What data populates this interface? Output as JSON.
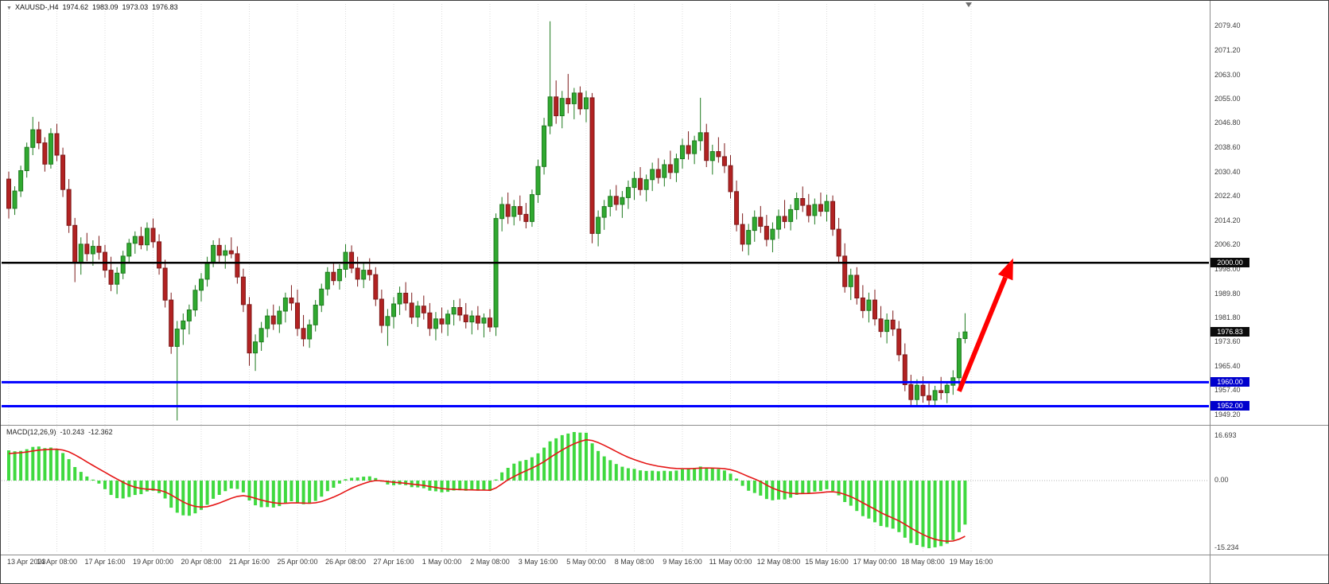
{
  "header": {
    "dropdown_icon": "▼",
    "title": "XAUUSD-,H4",
    "open": "1974.62",
    "high": "1983.09",
    "low": "1973.03",
    "close": "1976.83"
  },
  "indicator": {
    "label": "MACD(12,26,9)",
    "main_value": "-10.243",
    "signal_value": "-12.362",
    "axis_labels": [
      "16.693",
      "0.00",
      "-15.234"
    ]
  },
  "price_axis": {
    "labels": [
      "2079.40",
      "2071.20",
      "2063.00",
      "2055.00",
      "2046.80",
      "2038.60",
      "2030.40",
      "2022.40",
      "2014.20",
      "2006.20",
      "1998.00",
      "1989.80",
      "1981.80",
      "1973.60",
      "1965.40",
      "1957.40",
      "1949.20"
    ],
    "tags": [
      {
        "text": "2000.00",
        "price": 2000.0,
        "bg": "#0b0b0b",
        "name": "resistance-price-tag"
      },
      {
        "text": "1976.83",
        "price": 1976.83,
        "bg": "#0b0b0b",
        "name": "current-price-tag"
      },
      {
        "text": "1960.00",
        "price": 1960.0,
        "bg": "#0000cd",
        "name": "support-price-tag"
      },
      {
        "text": "1952.00",
        "price": 1952.0,
        "bg": "#0000cd",
        "name": "support-price-tag"
      }
    ]
  },
  "time_axis": {
    "labels": [
      "13 Apr 2023",
      "14 Apr 08:00",
      "17 Apr 16:00",
      "19 Apr 00:00",
      "20 Apr 08:00",
      "21 Apr 16:00",
      "25 Apr 00:00",
      "26 Apr 08:00",
      "27 Apr 16:00",
      "1 May 00:00",
      "2 May 08:00",
      "3 May 16:00",
      "5 May 00:00",
      "8 May 08:00",
      "9 May 16:00",
      "11 May 00:00",
      "12 May 08:00",
      "15 May 16:00",
      "17 May 00:00",
      "18 May 08:00",
      "19 May 16:00"
    ]
  },
  "objects": {
    "hlines": [
      {
        "price": 2000.0,
        "color": "#000000",
        "width": 2.5
      },
      {
        "price": 1960.0,
        "color": "#0000ff",
        "width": 3
      },
      {
        "price": 1952.0,
        "color": "#0000ff",
        "width": 3
      }
    ],
    "arrow": {
      "from_index": 158,
      "from_price": 1957.0,
      "to_index": 167,
      "to_price": 2001.5,
      "color": "#ff0000",
      "width": 6
    }
  },
  "chart_data": {
    "type": "candlestick",
    "symbol": "XAUUSD-",
    "timeframe": "H4",
    "title": "XAUUSD- H4 with MACD(12,26,9)",
    "price_range": [
      1946.0,
      2083.4
    ],
    "candles_per_tick": 8,
    "x_ticks": [
      "13 Apr 2023",
      "14 Apr 08:00",
      "17 Apr 16:00",
      "19 Apr 00:00",
      "20 Apr 08:00",
      "21 Apr 16:00",
      "25 Apr 00:00",
      "26 Apr 08:00",
      "27 Apr 16:00",
      "1 May 00:00",
      "2 May 08:00",
      "3 May 16:00",
      "5 May 00:00",
      "8 May 08:00",
      "9 May 16:00",
      "11 May 00:00",
      "12 May 08:00",
      "15 May 16:00",
      "17 May 00:00",
      "18 May 08:00",
      "19 May 16:00"
    ],
    "macd": {
      "params": [
        12,
        26,
        9
      ],
      "current_main": -10.243,
      "current_signal": -12.362,
      "range": [
        -15.234,
        16.693
      ]
    },
    "colors": {
      "bull": "#30a930",
      "bull_border": "#1e7a1e",
      "bear": "#b22222",
      "bear_border": "#7d1a1a",
      "macd_hist": "#3fd93f",
      "macd_signal": "#e51616",
      "grid": "#dcdcdc",
      "level_black": "#000000",
      "level_blue": "#0000ff",
      "arrow": "#ff0000"
    },
    "candles": [
      [
        2028.0,
        2030.5,
        2014.8,
        2018.2
      ],
      [
        2018.2,
        2025.6,
        2016.0,
        2024.0
      ],
      [
        2024.0,
        2032.5,
        2022.0,
        2030.8
      ],
      [
        2030.8,
        2040.2,
        2028.5,
        2038.6
      ],
      [
        2038.6,
        2048.8,
        2036.0,
        2044.5
      ],
      [
        2044.5,
        2047.2,
        2038.0,
        2040.1
      ],
      [
        2040.1,
        2042.0,
        2030.5,
        2033.0
      ],
      [
        2033.0,
        2045.0,
        2031.5,
        2043.2
      ],
      [
        2043.2,
        2046.5,
        2034.0,
        2036.0
      ],
      [
        2036.0,
        2038.5,
        2022.0,
        2024.5
      ],
      [
        2024.5,
        2028.0,
        2010.0,
        2012.5
      ],
      [
        2012.5,
        2015.0,
        1993.5,
        1999.8
      ],
      [
        1999.8,
        2008.5,
        1996.0,
        2006.2
      ],
      [
        2006.2,
        2010.0,
        2000.5,
        2003.0
      ],
      [
        2003.0,
        2007.5,
        1999.0,
        2005.5
      ],
      [
        2005.5,
        2009.0,
        2001.0,
        2003.5
      ],
      [
        2003.5,
        2006.0,
        1995.0,
        1997.5
      ],
      [
        1997.5,
        2002.0,
        1990.5,
        1992.8
      ],
      [
        1992.8,
        1998.5,
        1989.5,
        1996.5
      ],
      [
        1996.5,
        2004.0,
        1994.5,
        2002.2
      ],
      [
        2002.2,
        2008.0,
        2000.0,
        2006.5
      ],
      [
        2006.5,
        2010.5,
        2003.0,
        2008.8
      ],
      [
        2008.8,
        2012.0,
        2004.5,
        2006.0
      ],
      [
        2006.0,
        2013.5,
        2004.0,
        2011.5
      ],
      [
        2011.5,
        2014.8,
        2005.0,
        2007.0
      ],
      [
        2007.0,
        2009.5,
        1996.0,
        1998.2
      ],
      [
        1998.2,
        2001.0,
        1985.0,
        1987.5
      ],
      [
        1987.5,
        1990.0,
        1969.5,
        1972.0
      ],
      [
        1972.0,
        1980.5,
        1947.2,
        1977.8
      ],
      [
        1977.8,
        1983.0,
        1972.5,
        1980.5
      ],
      [
        1980.5,
        1986.0,
        1976.0,
        1984.2
      ],
      [
        1984.2,
        1992.5,
        1982.0,
        1990.8
      ],
      [
        1990.8,
        1996.5,
        1987.0,
        1994.5
      ],
      [
        1994.5,
        2002.0,
        1992.0,
        2000.2
      ],
      [
        2000.2,
        2007.5,
        1998.5,
        2005.8
      ],
      [
        2005.8,
        2008.2,
        2000.0,
        2002.5
      ],
      [
        2002.5,
        2006.0,
        1998.0,
        2004.0
      ],
      [
        2004.0,
        2008.5,
        2001.5,
        2003.0
      ],
      [
        2003.0,
        2005.5,
        1993.0,
        1995.2
      ],
      [
        1995.2,
        1998.0,
        1983.5,
        1986.0
      ],
      [
        1986.0,
        1988.5,
        1965.5,
        1969.8
      ],
      [
        1969.8,
        1976.0,
        1963.8,
        1973.5
      ],
      [
        1973.5,
        1980.2,
        1970.5,
        1978.0
      ],
      [
        1978.0,
        1984.5,
        1975.0,
        1982.2
      ],
      [
        1982.2,
        1986.0,
        1977.5,
        1979.5
      ],
      [
        1979.5,
        1985.5,
        1976.5,
        1983.8
      ],
      [
        1983.8,
        1990.0,
        1980.0,
        1988.2
      ],
      [
        1988.2,
        1992.5,
        1984.0,
        1986.5
      ],
      [
        1986.5,
        1991.0,
        1975.5,
        1978.0
      ],
      [
        1978.0,
        1982.5,
        1972.0,
        1974.5
      ],
      [
        1974.5,
        1981.0,
        1971.5,
        1979.2
      ],
      [
        1979.2,
        1987.5,
        1977.0,
        1985.8
      ],
      [
        1985.8,
        1993.0,
        1983.5,
        1991.2
      ],
      [
        1991.2,
        1998.5,
        1989.0,
        1996.8
      ],
      [
        1996.8,
        2000.2,
        1992.5,
        1994.0
      ],
      [
        1994.0,
        1999.5,
        1991.0,
        1997.8
      ],
      [
        1997.8,
        2006.2,
        1995.0,
        2003.5
      ],
      [
        2003.5,
        2005.8,
        1996.5,
        1998.2
      ],
      [
        1998.2,
        2002.0,
        1992.0,
        1994.5
      ],
      [
        1994.5,
        1999.8,
        1991.5,
        1997.5
      ],
      [
        1997.5,
        2001.5,
        1994.0,
        1996.0
      ],
      [
        1996.0,
        1998.5,
        1985.5,
        1987.8
      ],
      [
        1987.8,
        1991.0,
        1976.5,
        1979.0
      ],
      [
        1979.0,
        1984.5,
        1972.2,
        1982.0
      ],
      [
        1982.0,
        1988.5,
        1978.0,
        1986.2
      ],
      [
        1986.2,
        1992.0,
        1982.5,
        1989.8
      ],
      [
        1989.8,
        1993.5,
        1984.0,
        1986.5
      ],
      [
        1986.5,
        1990.0,
        1979.5,
        1981.8
      ],
      [
        1981.8,
        1987.2,
        1978.5,
        1985.5
      ],
      [
        1985.5,
        1989.0,
        1981.0,
        1983.2
      ],
      [
        1983.2,
        1986.5,
        1975.5,
        1978.0
      ],
      [
        1978.0,
        1983.5,
        1974.0,
        1981.2
      ],
      [
        1981.2,
        1985.0,
        1976.5,
        1979.5
      ],
      [
        1979.5,
        1984.2,
        1975.5,
        1982.8
      ],
      [
        1982.8,
        1987.5,
        1979.0,
        1985.0
      ],
      [
        1985.0,
        1988.0,
        1980.5,
        1982.5
      ],
      [
        1982.5,
        1986.5,
        1978.0,
        1980.2
      ],
      [
        1980.2,
        1984.0,
        1976.0,
        1982.2
      ],
      [
        1982.2,
        1985.5,
        1977.5,
        1979.8
      ],
      [
        1979.8,
        1983.0,
        1975.0,
        1981.5
      ],
      [
        1981.5,
        1984.5,
        1976.8,
        1978.5
      ],
      [
        1978.5,
        2016.5,
        1975.5,
        2014.8
      ],
      [
        2014.8,
        2022.0,
        2010.5,
        2019.5
      ],
      [
        2019.5,
        2023.5,
        2013.0,
        2015.5
      ],
      [
        2015.5,
        2021.0,
        2012.5,
        2018.8
      ],
      [
        2018.8,
        2022.5,
        2014.0,
        2016.2
      ],
      [
        2016.2,
        2020.0,
        2011.5,
        2013.8
      ],
      [
        2013.8,
        2024.5,
        2012.0,
        2022.8
      ],
      [
        2022.8,
        2034.5,
        2020.0,
        2032.2
      ],
      [
        2032.2,
        2048.5,
        2029.5,
        2045.8
      ],
      [
        2045.8,
        2080.8,
        2043.0,
        2055.5
      ],
      [
        2055.5,
        2061.0,
        2046.5,
        2049.2
      ],
      [
        2049.2,
        2057.5,
        2045.0,
        2055.0
      ],
      [
        2055.0,
        2063.2,
        2050.0,
        2053.2
      ],
      [
        2053.2,
        2058.5,
        2048.0,
        2056.8
      ],
      [
        2056.8,
        2059.0,
        2049.5,
        2051.5
      ],
      [
        2051.5,
        2057.5,
        2047.0,
        2055.2
      ],
      [
        2055.2,
        2056.8,
        2006.5,
        2009.8
      ],
      [
        2009.8,
        2017.5,
        2005.5,
        2015.2
      ],
      [
        2015.2,
        2021.0,
        2011.0,
        2018.8
      ],
      [
        2018.8,
        2024.5,
        2015.5,
        2022.2
      ],
      [
        2022.2,
        2026.0,
        2017.5,
        2019.5
      ],
      [
        2019.5,
        2024.0,
        2015.0,
        2021.8
      ],
      [
        2021.8,
        2027.5,
        2018.0,
        2025.2
      ],
      [
        2025.2,
        2030.5,
        2021.0,
        2028.2
      ],
      [
        2028.2,
        2032.0,
        2022.5,
        2024.5
      ],
      [
        2024.5,
        2029.5,
        2020.5,
        2027.8
      ],
      [
        2027.8,
        2033.5,
        2024.0,
        2031.2
      ],
      [
        2031.2,
        2035.0,
        2026.5,
        2028.5
      ],
      [
        2028.5,
        2034.5,
        2025.5,
        2032.8
      ],
      [
        2032.8,
        2037.5,
        2028.0,
        2030.2
      ],
      [
        2030.2,
        2036.5,
        2027.0,
        2034.8
      ],
      [
        2034.8,
        2041.5,
        2031.5,
        2039.2
      ],
      [
        2039.2,
        2044.0,
        2034.5,
        2036.5
      ],
      [
        2036.5,
        2042.5,
        2033.0,
        2040.8
      ],
      [
        2040.8,
        2055.2,
        2037.5,
        2043.5
      ],
      [
        2043.5,
        2046.5,
        2032.0,
        2034.2
      ],
      [
        2034.2,
        2039.5,
        2029.5,
        2037.2
      ],
      [
        2037.2,
        2042.0,
        2033.5,
        2035.5
      ],
      [
        2035.5,
        2040.0,
        2030.0,
        2032.5
      ],
      [
        2032.5,
        2036.0,
        2021.5,
        2023.8
      ],
      [
        2023.8,
        2027.5,
        2010.5,
        2012.8
      ],
      [
        2012.8,
        2016.5,
        2003.8,
        2006.2
      ],
      [
        2006.2,
        2013.0,
        2002.5,
        2010.8
      ],
      [
        2010.8,
        2017.5,
        2007.0,
        2015.2
      ],
      [
        2015.2,
        2019.0,
        2010.0,
        2012.2
      ],
      [
        2012.2,
        2016.0,
        2005.5,
        2007.8
      ],
      [
        2007.8,
        2013.5,
        2003.5,
        2011.2
      ],
      [
        2011.2,
        2017.8,
        2008.0,
        2015.5
      ],
      [
        2015.5,
        2021.0,
        2011.5,
        2013.8
      ],
      [
        2013.8,
        2019.5,
        2010.8,
        2017.8
      ],
      [
        2017.8,
        2023.5,
        2014.5,
        2021.5
      ],
      [
        2021.5,
        2025.5,
        2017.0,
        2019.2
      ],
      [
        2019.2,
        2023.0,
        2013.5,
        2015.8
      ],
      [
        2015.8,
        2021.5,
        2012.8,
        2019.5
      ],
      [
        2019.5,
        2023.5,
        2015.5,
        2017.2
      ],
      [
        2017.2,
        2022.8,
        2013.8,
        2020.5
      ],
      [
        2020.5,
        2022.5,
        2009.0,
        2011.2
      ],
      [
        2011.2,
        2015.0,
        2000.0,
        2002.2
      ],
      [
        2002.2,
        2006.5,
        1990.0,
        1992.0
      ],
      [
        1992.0,
        1998.0,
        1987.5,
        1995.8
      ],
      [
        1995.8,
        1998.5,
        1986.0,
        1988.2
      ],
      [
        1988.2,
        1992.5,
        1981.5,
        1984.0
      ],
      [
        1984.0,
        1990.0,
        1980.0,
        1987.5
      ],
      [
        1987.5,
        1991.0,
        1979.0,
        1981.2
      ],
      [
        1981.2,
        1985.5,
        1975.0,
        1977.0
      ],
      [
        1977.0,
        1983.0,
        1973.0,
        1980.8
      ],
      [
        1980.8,
        1984.0,
        1975.5,
        1977.8
      ],
      [
        1977.8,
        1980.5,
        1967.0,
        1969.2
      ],
      [
        1969.2,
        1973.0,
        1957.0,
        1959.2
      ],
      [
        1959.2,
        1962.5,
        1952.0,
        1954.2
      ],
      [
        1954.2,
        1961.0,
        1952.4,
        1959.0
      ],
      [
        1959.0,
        1962.0,
        1953.2,
        1955.5
      ],
      [
        1955.5,
        1959.5,
        1951.8,
        1954.0
      ],
      [
        1954.0,
        1958.8,
        1952.2,
        1957.2
      ],
      [
        1957.2,
        1961.8,
        1954.2,
        1956.5
      ],
      [
        1956.5,
        1960.2,
        1953.0,
        1959.0
      ],
      [
        1959.0,
        1964.0,
        1955.8,
        1961.5
      ],
      [
        1961.5,
        1976.8,
        1958.8,
        1974.6
      ],
      [
        1974.62,
        1983.09,
        1973.03,
        1976.83
      ]
    ]
  }
}
